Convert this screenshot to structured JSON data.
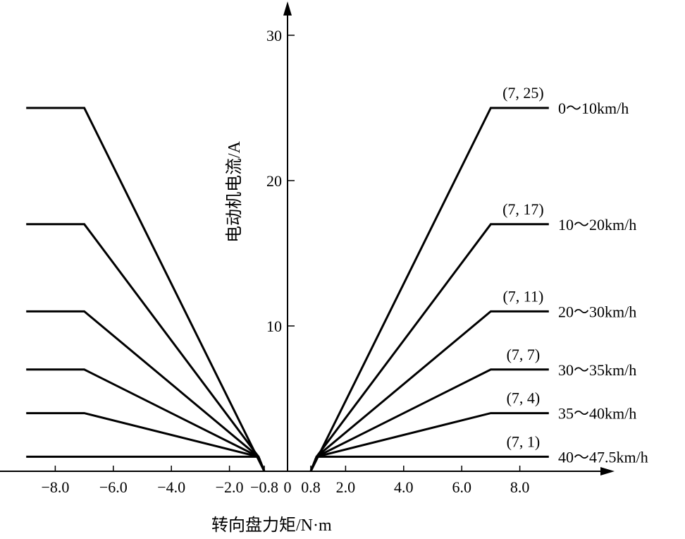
{
  "chart_data": {
    "type": "line",
    "xlabel": "转向盘力矩/N·m",
    "ylabel": "电动机电流/A",
    "x_ticks": [
      {
        "value": -8.0,
        "label": "−8.0"
      },
      {
        "value": -6.0,
        "label": "−6.0"
      },
      {
        "value": -4.0,
        "label": "−4.0"
      },
      {
        "value": -2.0,
        "label": "−2.0"
      },
      {
        "value": -0.8,
        "label": "−0.8"
      },
      {
        "value": 0,
        "label": "0"
      },
      {
        "value": 0.8,
        "label": "0.8"
      },
      {
        "value": 2.0,
        "label": "2.0"
      },
      {
        "value": 4.0,
        "label": "4.0"
      },
      {
        "value": 6.0,
        "label": "6.0"
      },
      {
        "value": 8.0,
        "label": "8.0"
      }
    ],
    "y_ticks": [
      {
        "value": 10,
        "label": "10"
      },
      {
        "value": 20,
        "label": "20"
      },
      {
        "value": 30,
        "label": "30"
      }
    ],
    "xlim": [
      -9.6,
      11.0
    ],
    "ylim": [
      0,
      32
    ],
    "grid": false,
    "series": [
      {
        "name": "0～10km/h",
        "point_label": "(7, 25)",
        "right": [
          [
            0.8,
            0
          ],
          [
            7,
            25
          ],
          [
            9,
            25
          ]
        ],
        "left": [
          [
            -0.8,
            0
          ],
          [
            -7,
            25
          ],
          [
            -9,
            25
          ]
        ]
      },
      {
        "name": "10～20km/h",
        "point_label": "(7, 17)",
        "right": [
          [
            0.8,
            0
          ],
          [
            1.0,
            1
          ],
          [
            7,
            17
          ],
          [
            9,
            17
          ]
        ],
        "left": [
          [
            -0.8,
            0
          ],
          [
            -1.0,
            1
          ],
          [
            -7,
            17
          ],
          [
            -9,
            17
          ]
        ]
      },
      {
        "name": "20～30km/h",
        "point_label": "(7, 11)",
        "right": [
          [
            0.8,
            0
          ],
          [
            1.0,
            1
          ],
          [
            7,
            11
          ],
          [
            9,
            11
          ]
        ],
        "left": [
          [
            -0.8,
            0
          ],
          [
            -1.0,
            1
          ],
          [
            -7,
            11
          ],
          [
            -9,
            11
          ]
        ]
      },
      {
        "name": "30～35km/h",
        "point_label": "(7, 7)",
        "right": [
          [
            0.8,
            0
          ],
          [
            1.0,
            1
          ],
          [
            7,
            7
          ],
          [
            9,
            7
          ]
        ],
        "left": [
          [
            -0.8,
            0
          ],
          [
            -1.0,
            1
          ],
          [
            -7,
            7
          ],
          [
            -9,
            7
          ]
        ]
      },
      {
        "name": "35～40km/h",
        "point_label": "(7, 4)",
        "right": [
          [
            0.8,
            0
          ],
          [
            1.0,
            1
          ],
          [
            7,
            4
          ],
          [
            9,
            4
          ]
        ],
        "left": [
          [
            -0.8,
            0
          ],
          [
            -1.0,
            1
          ],
          [
            -7,
            4
          ],
          [
            -9,
            4
          ]
        ]
      },
      {
        "name": "40～47.5km/h",
        "point_label": "(7, 1)",
        "right": [
          [
            0.8,
            0
          ],
          [
            1.0,
            1
          ],
          [
            9,
            1
          ]
        ],
        "left": [
          [
            -0.8,
            0
          ],
          [
            -1.0,
            1
          ],
          [
            -9,
            1
          ]
        ]
      }
    ]
  }
}
